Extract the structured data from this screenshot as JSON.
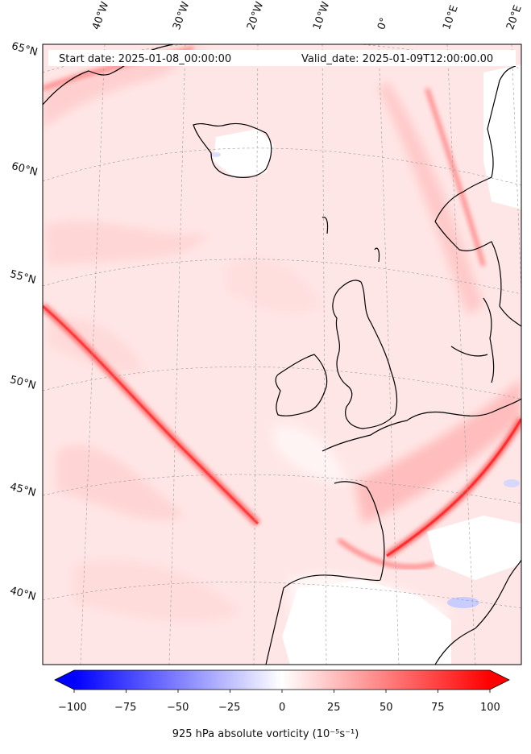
{
  "header": {
    "start_date": "Start date: 2025-01-08_00:00:00",
    "valid_date": "Valid_date: 2025-01-09T12:00:00.00"
  },
  "longitude_labels": [
    "40°W",
    "30°W",
    "20°W",
    "10°W",
    "0°",
    "10°E",
    "20°E"
  ],
  "latitude_labels": [
    "65°N",
    "60°N",
    "55°N",
    "50°N",
    "45°N",
    "40°N"
  ],
  "colorbar": {
    "ticks": [
      "−100",
      "−75",
      "−50",
      "−25",
      "0",
      "25",
      "50",
      "75",
      "100"
    ],
    "label": "925 hPa absolute vorticity (10⁻⁵s⁻¹)",
    "min_color": "#0000ff",
    "mid_color": "#ffffff",
    "max_color": "#ff0000"
  }
}
